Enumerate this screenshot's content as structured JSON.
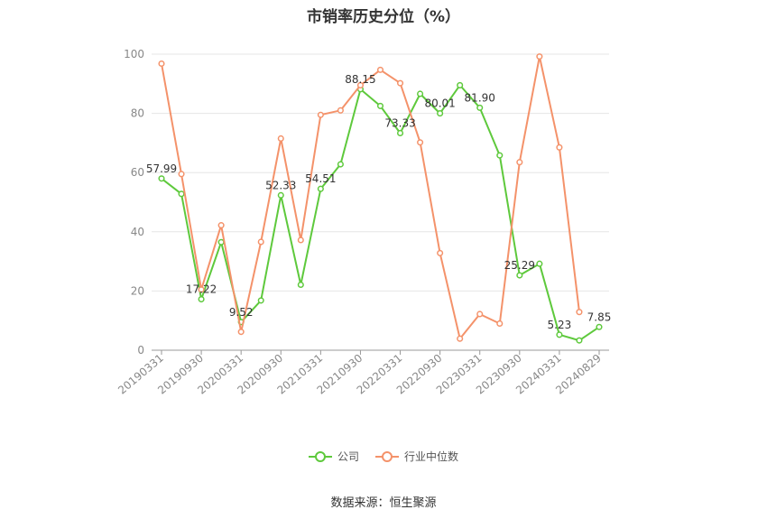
{
  "chart_data": {
    "type": "line",
    "title": "市销率历史分位（%）",
    "ylim": [
      0,
      100
    ],
    "yticks": [
      0,
      20,
      40,
      60,
      80,
      100
    ],
    "x": [
      "20190331",
      "20190630",
      "20190930",
      "20191231",
      "20200331",
      "20200630",
      "20200930",
      "20201231",
      "20210331",
      "20210630",
      "20210930",
      "20211231",
      "20220331",
      "20220630",
      "20220930",
      "20221231",
      "20230331",
      "20230630",
      "20230930",
      "20231231",
      "20240331",
      "20240630",
      "20240829"
    ],
    "xtick_labels": [
      "20190331",
      "20190930",
      "20200331",
      "20200930",
      "20210331",
      "20210930",
      "20220331",
      "20220930",
      "20230331",
      "20230930",
      "20240331",
      "20240829"
    ],
    "grid": true,
    "legend_position": "bottom",
    "series": [
      {
        "name": "公司",
        "color": "#5ec93c",
        "values": [
          57.99,
          52.8,
          17.22,
          36.5,
          9.52,
          16.8,
          52.33,
          22.1,
          54.51,
          62.8,
          88.15,
          82.5,
          73.33,
          86.6,
          80.01,
          89.5,
          81.9,
          65.8,
          25.29,
          29.2,
          5.23,
          3.3,
          7.85
        ],
        "labels": [
          "57.99",
          "",
          "17.22",
          "",
          "9.52",
          "",
          "52.33",
          "",
          "54.51",
          "",
          "88.15",
          "",
          "73.33",
          "",
          "80.01",
          "",
          "81.90",
          "",
          "25.29",
          "",
          "5.23",
          "",
          "7.85"
        ]
      },
      {
        "name": "行业中位数",
        "color": "#f4926a",
        "values": [
          96.8,
          59.5,
          20.5,
          42.2,
          6.2,
          36.6,
          71.5,
          37.2,
          79.5,
          81.0,
          89.5,
          94.7,
          90.2,
          70.2,
          32.8,
          3.9,
          12.2,
          9.0,
          63.5,
          99.2,
          68.5,
          12.9,
          null
        ],
        "labels": []
      }
    ]
  },
  "legend": {
    "company": "公司",
    "industry": "行业中位数"
  },
  "source_text": "数据来源：恒生聚源"
}
